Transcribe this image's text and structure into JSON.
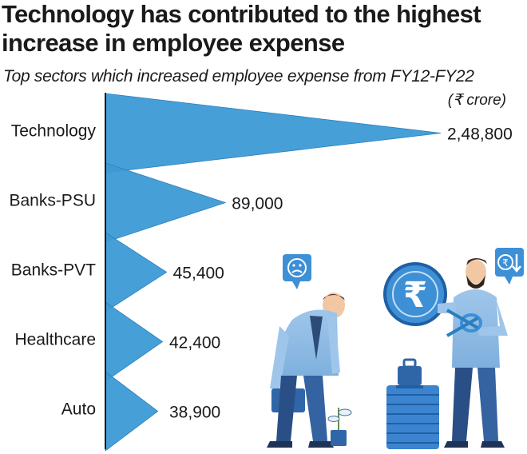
{
  "title": "Technology has contributed to the highest increase in employee expense",
  "subtitle": "Top sectors which increased employee expense from FY12-FY22",
  "unit": "(₹ crore)",
  "colors": {
    "bar": "#3d9ad6",
    "bar_edge": "#2a7fbf",
    "axis": "#1a1a1a",
    "text": "#1a1a1a"
  },
  "chart_data": {
    "type": "bar",
    "orientation": "horizontal",
    "title": "Technology has contributed to the highest increase in employee expense",
    "subtitle": "Top sectors which increased employee expense from FY12-FY22",
    "unit": "(₹ crore)",
    "categories": [
      "Technology",
      "Banks-PSU",
      "Banks-PVT",
      "Healthcare",
      "Auto"
    ],
    "values": [
      248800,
      89000,
      45400,
      42400,
      38900
    ],
    "value_labels": [
      "2,48,800",
      "89,000",
      "45,400",
      "42,400",
      "38,900"
    ],
    "xlabel": "",
    "ylabel": "",
    "grid": false,
    "legend": "none"
  },
  "illustration": {
    "sad_icon": "sad-face-icon",
    "rupee_down_icon": "rupee-down-icon",
    "rupee_symbol": "₹"
  }
}
